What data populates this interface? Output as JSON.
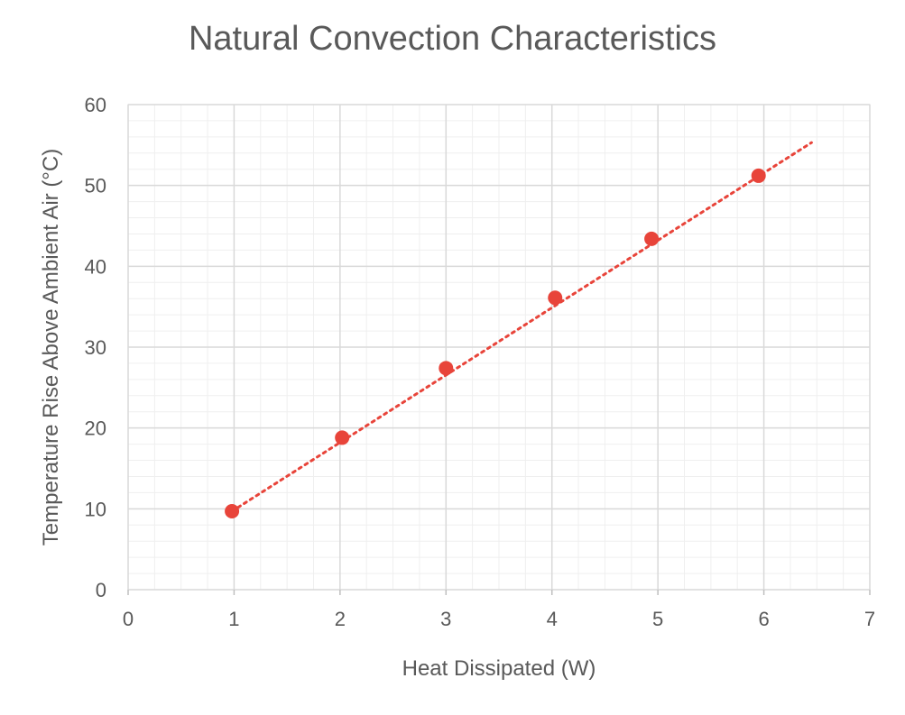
{
  "chart_data": {
    "type": "scatter",
    "title": "Natural Convection Characteristics",
    "xlabel": "Heat Dissipated (W)",
    "ylabel": "Temperature Rise Above Ambient Air (°C)",
    "xlim": [
      0,
      7
    ],
    "ylim": [
      0,
      60
    ],
    "x_ticks": [
      0,
      1,
      2,
      3,
      4,
      5,
      6,
      7
    ],
    "y_ticks": [
      0,
      10,
      20,
      30,
      40,
      50,
      60
    ],
    "grid": true,
    "minor_grid": true,
    "legend": "none",
    "series": [
      {
        "name": "Measured",
        "color": "#E8443A",
        "x": [
          0.98,
          2.02,
          3.0,
          4.03,
          4.94,
          5.95
        ],
        "y": [
          9.7,
          18.8,
          27.4,
          36.1,
          43.4,
          51.2
        ]
      }
    ],
    "trendline": {
      "type": "linear",
      "style": "dotted",
      "color": "#E8443A",
      "x_start": 0.98,
      "x_end": 6.45,
      "y_start": 9.7,
      "y_end": 55.3
    }
  }
}
